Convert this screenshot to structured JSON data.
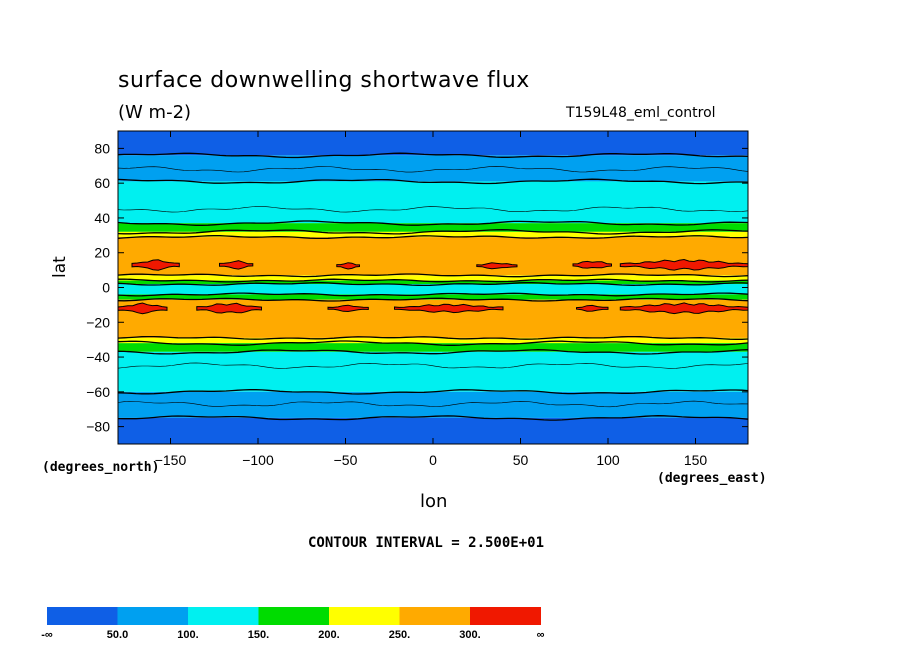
{
  "chart_data": {
    "type": "heatmap",
    "title": "surface downwelling shortwave flux",
    "units": "(W m-2)",
    "run_label": "T159L48_eml_control",
    "xlabel": "lon",
    "ylabel": "lat",
    "x_units": "(degrees_east)",
    "y_units": "(degrees_north)",
    "xlim": [
      -180,
      180
    ],
    "ylim": [
      -90,
      90
    ],
    "x_ticks": [
      -150,
      -100,
      -50,
      0,
      50,
      100,
      150
    ],
    "y_ticks": [
      80,
      60,
      40,
      20,
      0,
      -20,
      -40,
      -60,
      -80
    ],
    "contour_interval_label": "CONTOUR INTERVAL = 2.500E+01",
    "colorbar": {
      "colors": [
        "#0f5fe6",
        "#00a0f0",
        "#00f0f0",
        "#00dc00",
        "#ffff00",
        "#ffaa00",
        "#f01800"
      ],
      "labels": [
        "-∞",
        "50.0",
        "100.",
        "150.",
        "200.",
        "250.",
        "300.",
        "∞"
      ]
    },
    "zonal_bands": [
      {
        "lat_top": 90,
        "lat_bottom": 76,
        "level": 0
      },
      {
        "lat_top": 76,
        "lat_bottom": 61,
        "level": 1
      },
      {
        "lat_top": 61,
        "lat_bottom": 37,
        "level": 2
      },
      {
        "lat_top": 37,
        "lat_bottom": 32,
        "level": 3
      },
      {
        "lat_top": 32,
        "lat_bottom": 29,
        "level": 4
      },
      {
        "lat_top": 29,
        "lat_bottom": 7,
        "level": 5
      },
      {
        "lat_top": 7,
        "lat_bottom": 4,
        "level": 4
      },
      {
        "lat_top": 4,
        "lat_bottom": 2,
        "level": 3
      },
      {
        "lat_top": 2,
        "lat_bottom": -4,
        "level": 2
      },
      {
        "lat_top": -4,
        "lat_bottom": -7,
        "level": 3
      },
      {
        "lat_top": -7,
        "lat_bottom": -29,
        "level": 5
      },
      {
        "lat_top": -29,
        "lat_bottom": -32,
        "level": 4
      },
      {
        "lat_top": -32,
        "lat_bottom": -37,
        "level": 3
      },
      {
        "lat_top": -37,
        "lat_bottom": -60,
        "level": 2
      },
      {
        "lat_top": -60,
        "lat_bottom": -75,
        "level": 1
      },
      {
        "lat_top": -75,
        "lat_bottom": -90,
        "level": 0
      }
    ],
    "max_patches": [
      {
        "lon_start": -172,
        "lon_end": -145,
        "lat_center": 13,
        "lat_half_width": 2.5
      },
      {
        "lon_start": -122,
        "lon_end": -103,
        "lat_center": 13,
        "lat_half_width": 2
      },
      {
        "lon_start": -55,
        "lon_end": -42,
        "lat_center": 12.5,
        "lat_half_width": 1.5
      },
      {
        "lon_start": 25,
        "lon_end": 48,
        "lat_center": 12.5,
        "lat_half_width": 1.5
      },
      {
        "lon_start": 80,
        "lon_end": 102,
        "lat_center": 13,
        "lat_half_width": 2
      },
      {
        "lon_start": 107,
        "lon_end": 180,
        "lat_center": 13,
        "lat_half_width": 2.5
      },
      {
        "lon_start": -180,
        "lon_end": -152,
        "lat_center": -12,
        "lat_half_width": 2.5
      },
      {
        "lon_start": -135,
        "lon_end": -98,
        "lat_center": -12,
        "lat_half_width": 2.5
      },
      {
        "lon_start": -60,
        "lon_end": -37,
        "lat_center": -12,
        "lat_half_width": 1.5
      },
      {
        "lon_start": -22,
        "lon_end": 40,
        "lat_center": -12,
        "lat_half_width": 2
      },
      {
        "lon_start": 82,
        "lon_end": 100,
        "lat_center": -12,
        "lat_half_width": 1.5
      },
      {
        "lon_start": 107,
        "lon_end": 180,
        "lat_center": -12,
        "lat_half_width": 2.5
      }
    ]
  }
}
